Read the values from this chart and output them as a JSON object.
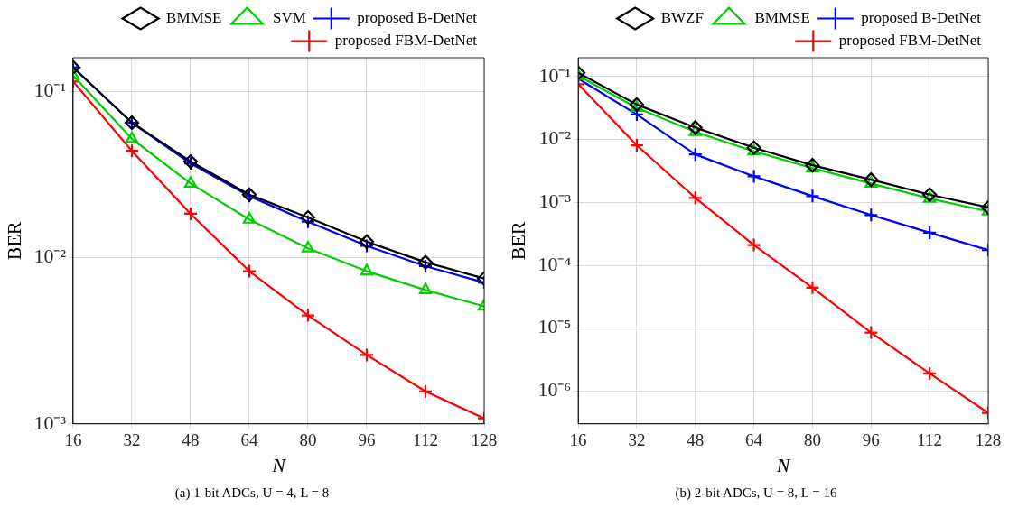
{
  "chart_data": [
    {
      "type": "line",
      "xlabel": "N",
      "ylabel": "BER",
      "log": "y",
      "grid": true,
      "legend": "top right",
      "line_style": "solid",
      "x": [
        16,
        32,
        48,
        64,
        80,
        96,
        112,
        128
      ],
      "xlim": [
        16,
        128
      ],
      "xticks": [
        16,
        32,
        48,
        64,
        80,
        96,
        112,
        128
      ],
      "ylim": [
        0.001,
        0.16
      ],
      "yticks": [
        {
          "value": 0.001,
          "label": "10⁻³"
        },
        {
          "value": 0.01,
          "label": "10⁻²"
        },
        {
          "value": 0.1,
          "label": "10⁻¹"
        }
      ],
      "annotations": [
        "(a) 1-bit ADCs, U = 4, L = 8"
      ],
      "series": [
        {
          "name": "BMMSE",
          "color": "#000000",
          "marker": "diamond",
          "values": [
            0.14,
            0.065,
            0.038,
            0.024,
            0.0175,
            0.0125,
            0.0094,
            0.0075
          ]
        },
        {
          "name": "SVM",
          "color": "#00cc00",
          "marker": "triangle",
          "values": [
            0.125,
            0.052,
            0.028,
            0.017,
            0.0114,
            0.0083,
            0.0064,
            0.0051
          ]
        },
        {
          "name": "proposed B-DetNet",
          "color": "#0000ff",
          "marker": "cross",
          "values": [
            0.14,
            0.065,
            0.037,
            0.0235,
            0.0165,
            0.0118,
            0.0089,
            0.0071
          ]
        },
        {
          "name": "proposed FBM-DetNet",
          "color": "#ff0000",
          "marker": "cross",
          "values": [
            0.115,
            0.044,
            0.0184,
            0.0083,
            0.0045,
            0.0026,
            0.00157,
            0.00108
          ]
        }
      ]
    },
    {
      "type": "line",
      "xlabel": "N",
      "ylabel": "BER",
      "log": "y",
      "grid": true,
      "legend": "top right",
      "line_style": "solid",
      "x": [
        16,
        32,
        48,
        64,
        80,
        96,
        112,
        128
      ],
      "xlim": [
        16,
        128
      ],
      "xticks": [
        16,
        32,
        48,
        64,
        80,
        96,
        112,
        128
      ],
      "ylim": [
        3e-07,
        0.2
      ],
      "yticks": [
        {
          "value": 1e-06,
          "label": "10⁻⁶"
        },
        {
          "value": 1e-05,
          "label": "10⁻⁵"
        },
        {
          "value": 0.0001,
          "label": "10⁻⁴"
        },
        {
          "value": 0.001,
          "label": "10⁻³"
        },
        {
          "value": 0.01,
          "label": "10⁻²"
        },
        {
          "value": 0.1,
          "label": "10⁻¹"
        }
      ],
      "annotations": [
        "(b) 2-bit ADCs, U = 8, L = 16"
      ],
      "series": [
        {
          "name": "BWZF",
          "color": "#000000",
          "marker": "diamond",
          "values": [
            0.115,
            0.036,
            0.0155,
            0.0074,
            0.0039,
            0.0023,
            0.00133,
            0.00083
          ]
        },
        {
          "name": "BMMSE",
          "color": "#00cc00",
          "marker": "triangle",
          "values": [
            0.103,
            0.032,
            0.0132,
            0.0065,
            0.0035,
            0.002,
            0.00115,
            0.00072
          ]
        },
        {
          "name": "proposed B-DetNet",
          "color": "#0000ff",
          "marker": "cross",
          "values": [
            0.093,
            0.025,
            0.0058,
            0.0026,
            0.00126,
            0.00063,
            0.00033,
            0.000174
          ]
        },
        {
          "name": "proposed FBM-DetNet",
          "color": "#ff0000",
          "marker": "cross",
          "values": [
            0.076,
            0.0081,
            0.00118,
            0.00021,
            4.4e-05,
            8.5e-06,
            1.9e-06,
            4.5e-07
          ]
        }
      ]
    }
  ]
}
